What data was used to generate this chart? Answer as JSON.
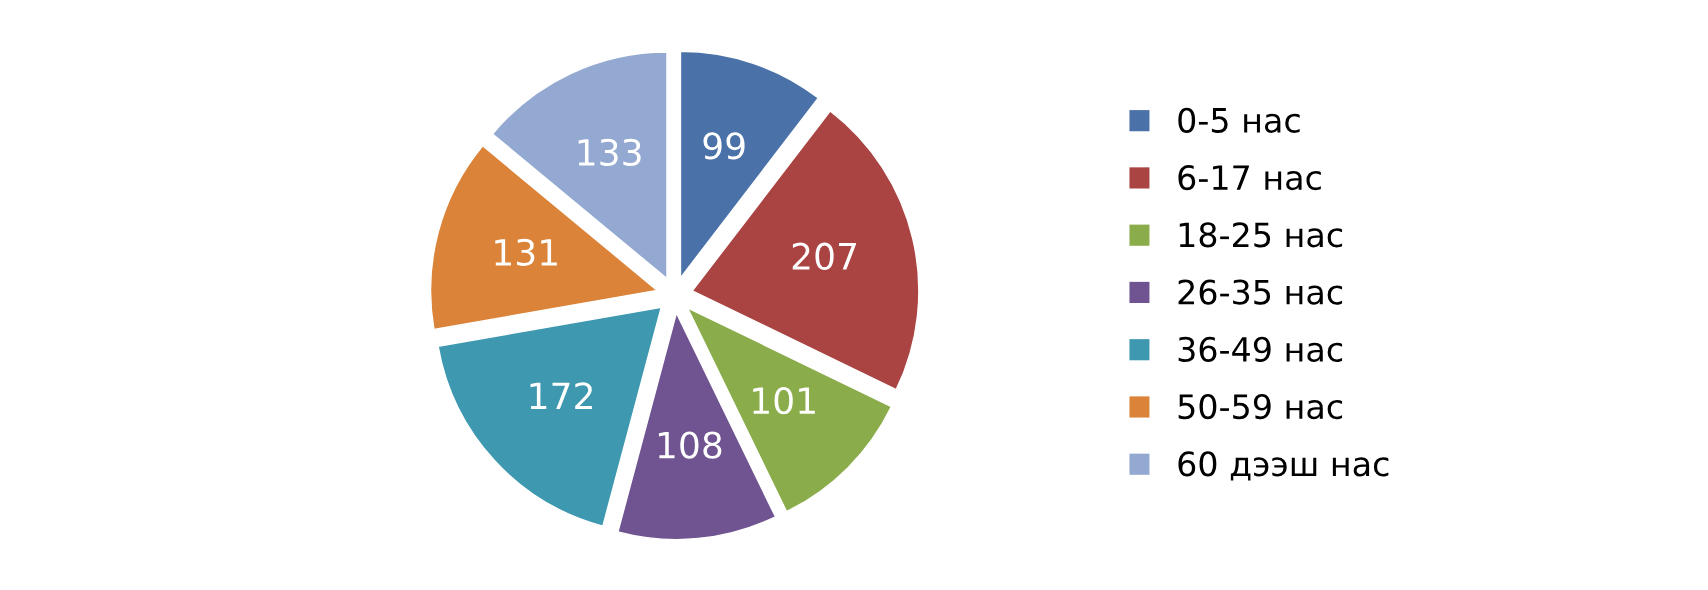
{
  "chart_data": {
    "type": "pie",
    "categories": [
      "0-5 нас",
      "6-17 нас",
      "18-25 нас",
      "26-35 нас",
      "36-49 нас",
      "50-59 нас",
      "60 дээш нас"
    ],
    "values": [
      99,
      207,
      101,
      108,
      172,
      131,
      133
    ],
    "colors": [
      "#4a72a8",
      "#a94442",
      "#8aac4b",
      "#6f5491",
      "#3e98b0",
      "#db8439",
      "#93a9d1"
    ],
    "data_labels": true,
    "legend": "right"
  }
}
